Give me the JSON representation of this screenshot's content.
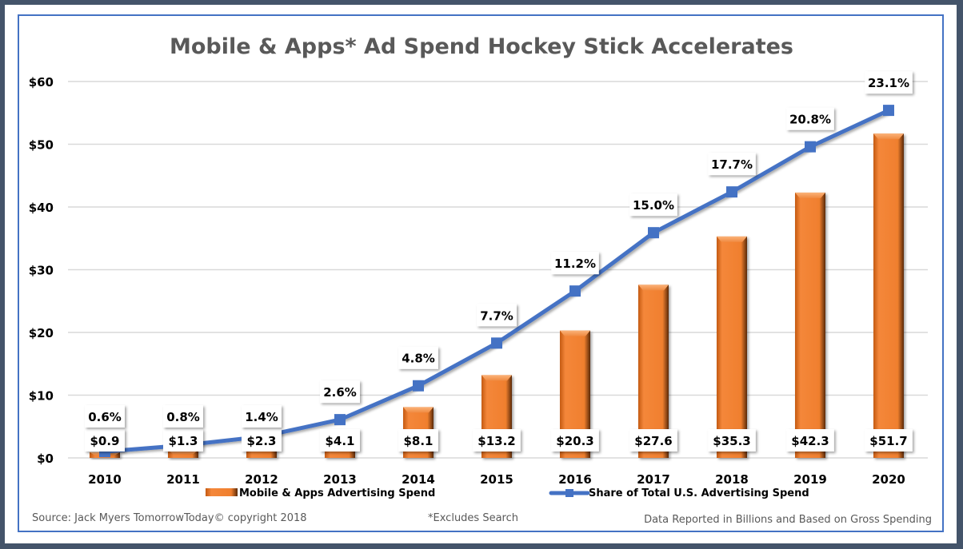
{
  "chart_data": {
    "type": "bar",
    "title": "Mobile & Apps* Ad Spend Hockey Stick Accelerates",
    "xlabel": "",
    "ylabel": "",
    "ylim": [
      0,
      60
    ],
    "yticks": [
      0,
      10,
      20,
      30,
      40,
      50,
      60
    ],
    "ytick_labels": [
      "$0",
      "$10",
      "$20",
      "$30",
      "$40",
      "$50",
      "$60"
    ],
    "grid": true,
    "categories": [
      "2010",
      "2011",
      "2012",
      "2013",
      "2014",
      "2015",
      "2016",
      "2017",
      "2018",
      "2019",
      "2020"
    ],
    "series": [
      {
        "name": "Mobile & Apps Advertising Spend",
        "type": "bar",
        "color": "#ed7d31",
        "values": [
          0.9,
          1.3,
          2.3,
          4.1,
          8.1,
          13.2,
          20.3,
          27.6,
          35.3,
          42.3,
          51.7
        ],
        "labels": [
          "$0.9",
          "$1.3",
          "$2.3",
          "$4.1",
          "$8.1",
          "$13.2",
          "$20.3",
          "$27.6",
          "$35.3",
          "$42.3",
          "$51.7"
        ]
      },
      {
        "name": "Share of Total U.S. Advertising Spend",
        "type": "line",
        "color": "#4472c4",
        "values_pct": [
          0.6,
          0.8,
          1.4,
          2.6,
          4.8,
          7.7,
          11.2,
          15.0,
          17.7,
          20.8,
          23.1
        ],
        "plotted_on_axis": [
          1.0,
          2.0,
          3.4,
          6.1,
          11.5,
          18.3,
          26.6,
          35.9,
          42.4,
          49.6,
          55.4
        ],
        "labels": [
          "0.6%",
          "0.8%",
          "1.4%",
          "2.6%",
          "4.8%",
          "7.7%",
          "11.2%",
          "15.0%",
          "17.7%",
          "20.8%",
          "23.1%"
        ]
      }
    ],
    "legend_position": "bottom"
  },
  "footer": {
    "source": "Source: Jack Myers TomorrowToday© copyright 2018",
    "excludes": "*Excludes Search",
    "note": "Data Reported in Billions and Based on Gross Spending"
  }
}
